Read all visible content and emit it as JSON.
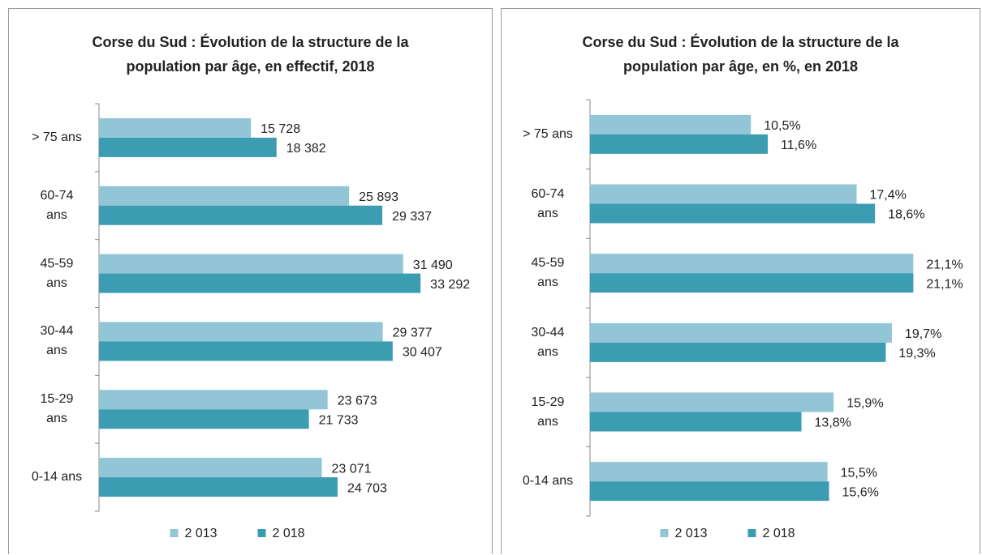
{
  "chart_data": [
    {
      "type": "bar",
      "orientation": "horizontal",
      "title": "Corse du Sud : Évolution de la structure de la\npopulation par âge, en effectif, 2018",
      "categories": [
        "> 75 ans",
        "60-74\nans",
        "45-59\nans",
        "30-44\nans",
        "15-29\nans",
        "0-14 ans"
      ],
      "series": [
        {
          "name": "2 013",
          "color": "#92c5d6",
          "values": [
            15728,
            25893,
            31490,
            29377,
            23673,
            23071
          ],
          "value_labels": [
            "15 728",
            "25 893",
            "31 490",
            "29 377",
            "23 673",
            "23 071"
          ]
        },
        {
          "name": "2 018",
          "color": "#3c9cb1",
          "values": [
            18382,
            29337,
            33292,
            30407,
            21733,
            24703
          ],
          "value_labels": [
            "18 382",
            "29 337",
            "33 292",
            "30 407",
            "21 733",
            "24 703"
          ]
        }
      ],
      "xlim": [
        0,
        40000
      ],
      "legend": "bottom"
    },
    {
      "type": "bar",
      "orientation": "horizontal",
      "title": "Corse du Sud : Évolution de la structure de la\npopulation par âge, en %, en 2018",
      "categories": [
        "> 75 ans",
        "60-74\nans",
        "45-59\nans",
        "30-44\nans",
        "15-29\nans",
        "0-14 ans"
      ],
      "series": [
        {
          "name": "2 013",
          "color": "#92c5d6",
          "values": [
            10.5,
            17.4,
            21.1,
            19.7,
            15.9,
            15.5
          ],
          "value_labels": [
            "10,5%",
            "17,4%",
            "21,1%",
            "19,7%",
            "15,9%",
            "15,5%"
          ]
        },
        {
          "name": "2 018",
          "color": "#3c9cb1",
          "values": [
            11.6,
            18.6,
            21.1,
            19.3,
            13.8,
            15.6
          ],
          "value_labels": [
            "11,6%",
            "18,6%",
            "21,1%",
            "19,3%",
            "13,8%",
            "15,6%"
          ]
        }
      ],
      "xlim": [
        0,
        25
      ],
      "legend": "bottom"
    }
  ]
}
